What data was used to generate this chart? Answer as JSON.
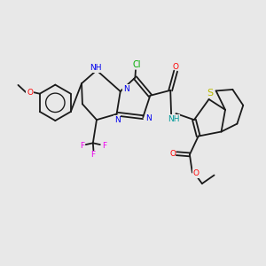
{
  "bg_color": "#e8e8e8",
  "bond_color": "#1a1a1a",
  "bond_lw": 1.3,
  "atom_colors": {
    "N": "#0000ee",
    "O": "#ff0000",
    "S": "#bbbb00",
    "F": "#ee00ee",
    "Cl": "#00aa00",
    "NH_teal": "#009999",
    "C": "#1a1a1a"
  },
  "font_size": 6.5
}
